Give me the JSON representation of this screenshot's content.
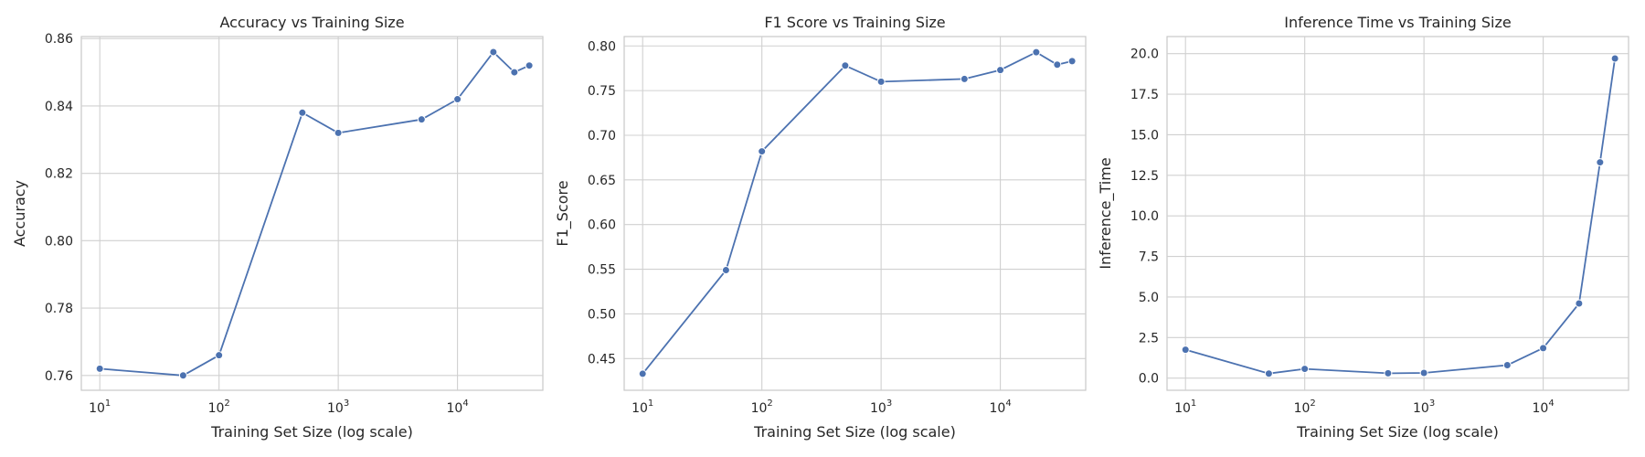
{
  "chart_data": [
    {
      "type": "line",
      "title": "Accuracy vs Training Size",
      "xlabel": "Training Set Size (log scale)",
      "ylabel": "Accuracy",
      "xscale": "log",
      "xlim": [
        7,
        52000
      ],
      "ylim": [
        0.7556,
        0.8606
      ],
      "xticks": [
        {
          "value": 10,
          "base": "10",
          "exp": "1"
        },
        {
          "value": 100,
          "base": "10",
          "exp": "2"
        },
        {
          "value": 1000,
          "base": "10",
          "exp": "3"
        },
        {
          "value": 10000,
          "base": "10",
          "exp": "4"
        }
      ],
      "yticks": [
        0.76,
        0.78,
        0.8,
        0.82,
        0.84,
        0.86
      ],
      "ytick_labels": [
        "0.76",
        "0.78",
        "0.80",
        "0.82",
        "0.84",
        "0.86"
      ],
      "grid": true,
      "series": [
        {
          "x": [
            10,
            50,
            100,
            500,
            1000,
            5000,
            10000,
            20000,
            30000,
            40000
          ],
          "values": [
            0.762,
            0.76,
            0.766,
            0.838,
            0.832,
            0.836,
            0.842,
            0.856,
            0.85,
            0.852
          ]
        }
      ]
    },
    {
      "type": "line",
      "title": "F1 Score vs Training Size",
      "xlabel": "Training Set Size (log scale)",
      "ylabel": "F1_Score",
      "xscale": "log",
      "xlim": [
        7,
        52000
      ],
      "ylim": [
        0.4145,
        0.8105
      ],
      "xticks": [
        {
          "value": 10,
          "base": "10",
          "exp": "1"
        },
        {
          "value": 100,
          "base": "10",
          "exp": "2"
        },
        {
          "value": 1000,
          "base": "10",
          "exp": "3"
        },
        {
          "value": 10000,
          "base": "10",
          "exp": "4"
        }
      ],
      "yticks": [
        0.45,
        0.5,
        0.55,
        0.6,
        0.65,
        0.7,
        0.75,
        0.8
      ],
      "ytick_labels": [
        "0.45",
        "0.50",
        "0.55",
        "0.60",
        "0.65",
        "0.70",
        "0.75",
        "0.80"
      ],
      "grid": true,
      "series": [
        {
          "x": [
            10,
            50,
            100,
            500,
            1000,
            5000,
            10000,
            20000,
            30000,
            40000
          ],
          "values": [
            0.433,
            0.549,
            0.682,
            0.778,
            0.76,
            0.763,
            0.773,
            0.793,
            0.779,
            0.783
          ]
        }
      ]
    },
    {
      "type": "line",
      "title": "Inference Time vs Training Size",
      "xlabel": "Training Set Size (log scale)",
      "ylabel": "Inference_Time",
      "xscale": "log",
      "xlim": [
        7,
        52000
      ],
      "ylim": [
        -0.75,
        21.05
      ],
      "xticks": [
        {
          "value": 10,
          "base": "10",
          "exp": "1"
        },
        {
          "value": 100,
          "base": "10",
          "exp": "2"
        },
        {
          "value": 1000,
          "base": "10",
          "exp": "3"
        },
        {
          "value": 10000,
          "base": "10",
          "exp": "4"
        }
      ],
      "yticks": [
        0,
        2.5,
        5,
        7.5,
        10,
        12.5,
        15,
        17.5,
        20
      ],
      "ytick_labels": [
        "0.0",
        "2.5",
        "5.0",
        "7.5",
        "10.0",
        "12.5",
        "15.0",
        "17.5",
        "20.0"
      ],
      "grid": true,
      "series": [
        {
          "x": [
            10,
            50,
            100,
            500,
            1000,
            5000,
            10000,
            20000,
            30000,
            40000
          ],
          "values": [
            1.75,
            0.28,
            0.57,
            0.3,
            0.32,
            0.8,
            1.85,
            4.6,
            13.3,
            19.7
          ]
        }
      ]
    }
  ]
}
